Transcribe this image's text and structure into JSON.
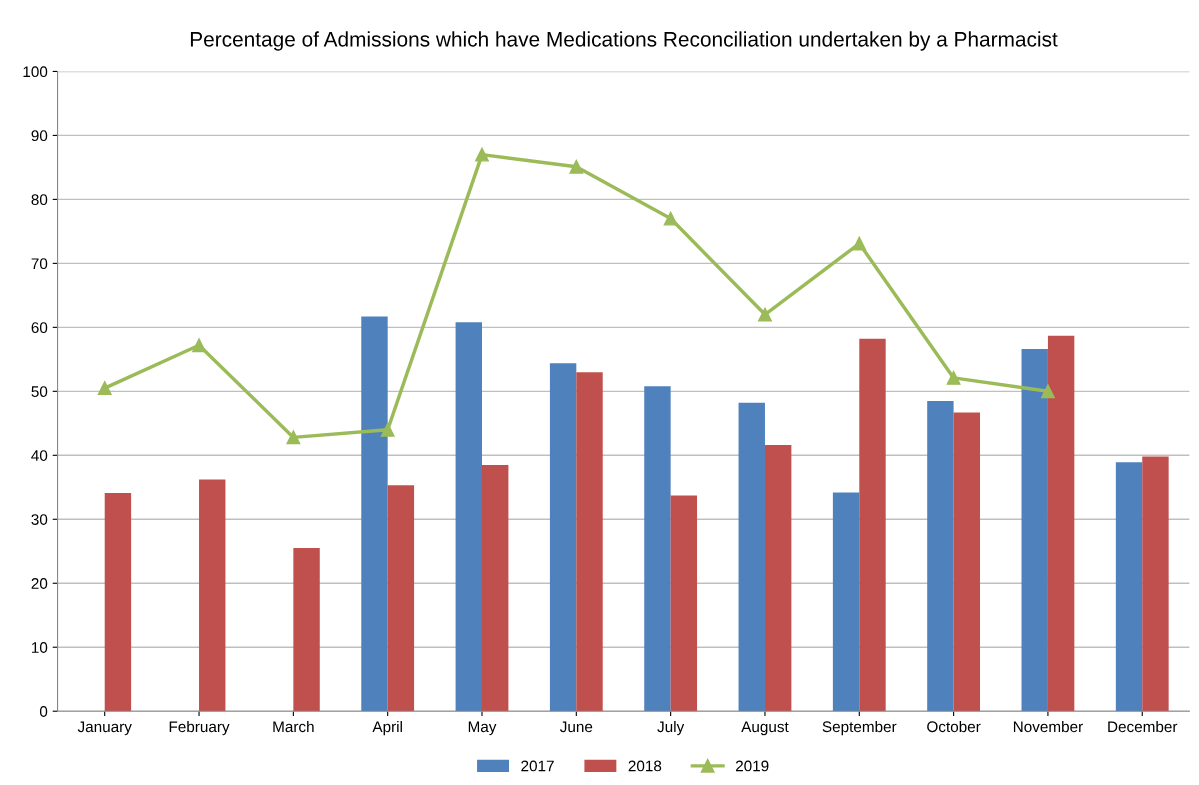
{
  "chart_data": {
    "type": "bar",
    "title": "Percentage of Admissions which have Medications Reconciliation undertaken by a Pharmacist",
    "categories": [
      "January",
      "February",
      "March",
      "April",
      "May",
      "June",
      "July",
      "August",
      "September",
      "October",
      "November",
      "December"
    ],
    "series": [
      {
        "name": "2017",
        "color": "#4f81bd",
        "values": [
          null,
          null,
          null,
          61.7,
          60.8,
          54.4,
          50.8,
          48.2,
          34.2,
          48.5,
          56.6,
          38.9
        ]
      },
      {
        "name": "2018",
        "color": "#c0504d",
        "values": [
          34.1,
          36.2,
          25.5,
          35.3,
          38.5,
          53.0,
          33.7,
          41.6,
          58.2,
          46.7,
          58.7,
          39.8
        ]
      },
      {
        "name": "2019",
        "color": "#9bbb59",
        "type": "line",
        "marker": "triangle",
        "values": [
          50.5,
          57.2,
          42.8,
          44.0,
          87.0,
          85.1,
          77.0,
          62.0,
          73.1,
          52.1,
          50.0,
          null
        ]
      }
    ],
    "ylim": [
      0,
      100
    ],
    "yticks": [
      0,
      10,
      20,
      30,
      40,
      50,
      60,
      70,
      80,
      90,
      100
    ],
    "grid": "y",
    "legend": "bottom"
  }
}
